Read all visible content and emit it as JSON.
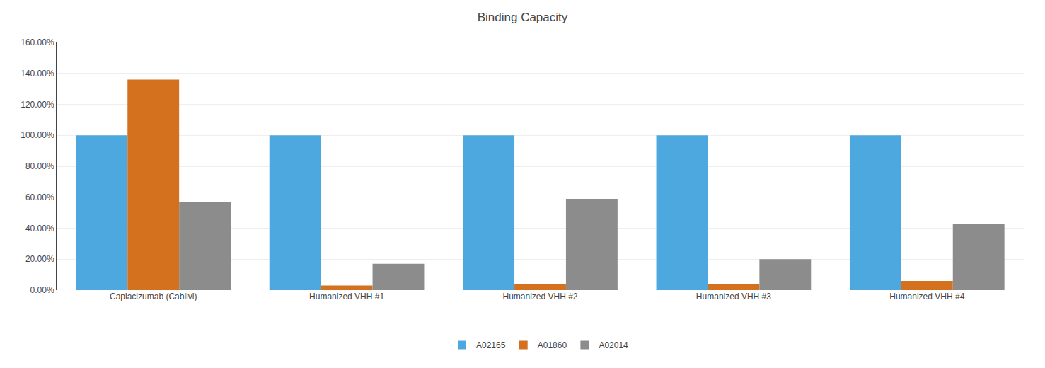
{
  "chart_data": {
    "type": "bar",
    "title": "Binding Capacity",
    "categories": [
      "Caplacizumab (Cablivi)",
      "Humanized VHH #1",
      "Humanized VHH #2",
      "Humanized VHH #3",
      "Humanized VHH #4"
    ],
    "series": [
      {
        "name": "A02165",
        "color": "#4EA8E0",
        "values": [
          1.0,
          1.0,
          1.0,
          1.0,
          1.0
        ]
      },
      {
        "name": "A01860",
        "color": "#D4711E",
        "values": [
          1.36,
          0.03,
          0.04,
          0.04,
          0.06
        ]
      },
      {
        "name": "A02014",
        "color": "#8C8C8C",
        "values": [
          0.57,
          0.17,
          0.59,
          0.2,
          0.43
        ]
      }
    ],
    "ylim": [
      0,
      1.6
    ],
    "yticks": [
      {
        "value": 0.0,
        "label": "0.00%"
      },
      {
        "value": 0.2,
        "label": "20.00%"
      },
      {
        "value": 0.4,
        "label": "40.00%"
      },
      {
        "value": 0.6,
        "label": "60.00%"
      },
      {
        "value": 0.8,
        "label": "80.00%"
      },
      {
        "value": 1.0,
        "label": "100.00%"
      },
      {
        "value": 1.2,
        "label": "120.00%"
      },
      {
        "value": 1.4,
        "label": "140.00%"
      },
      {
        "value": 1.6,
        "label": "160.00%"
      }
    ],
    "grid": true,
    "legend": "bottom"
  }
}
